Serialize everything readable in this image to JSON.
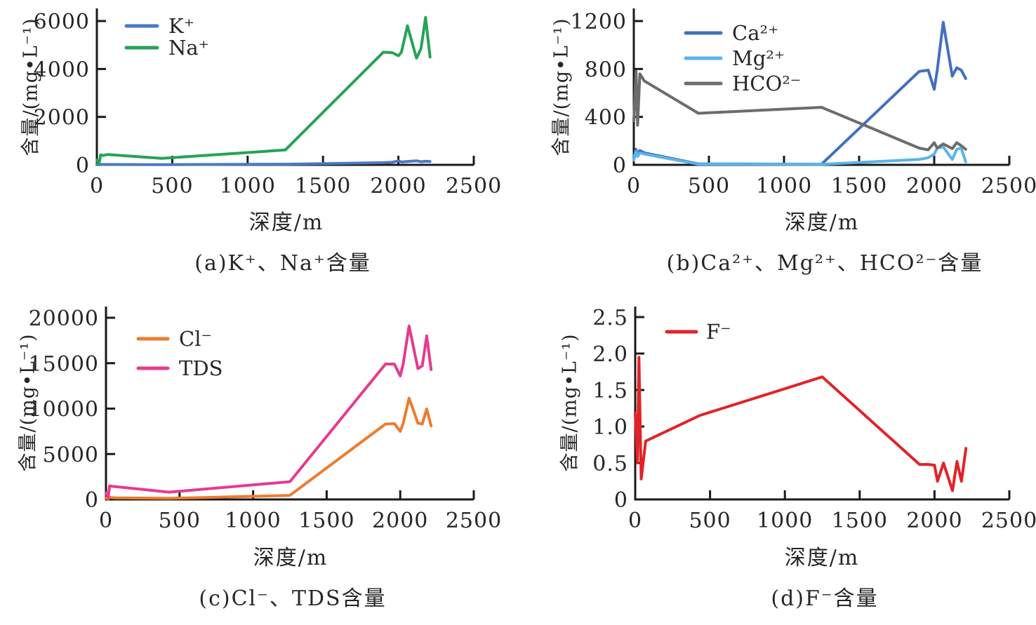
{
  "figure": {
    "background": "#ffffff",
    "text_color": "#262626",
    "axis_color": "#1a1a1a"
  },
  "chart_data": [
    {
      "id": "a",
      "type": "line",
      "caption": "(a)K⁺、Na⁺含量",
      "xlabel": "深度/m",
      "ylabel": "含量/(mg•L⁻¹)",
      "xlim": [
        0,
        2500
      ],
      "ylim": [
        0,
        6000
      ],
      "xticks": [
        0,
        500,
        1000,
        1500,
        2000,
        2500
      ],
      "xtick_labels": [
        "0",
        "500",
        "1000",
        "1500",
        "2000",
        "2500"
      ],
      "yticks": [
        0,
        2000,
        4000,
        6000
      ],
      "ytick_labels": [
        "0",
        "2000",
        "4000",
        "6000"
      ],
      "grid": false,
      "legend_position": "upper-left",
      "x": [
        0,
        15,
        25,
        40,
        70,
        430,
        1250,
        1900,
        1960,
        2000,
        2020,
        2060,
        2120,
        2150,
        2180,
        2210
      ],
      "series": [
        {
          "name": "K⁺",
          "color": "#4a79c5",
          "values": [
            20,
            10,
            15,
            15,
            15,
            10,
            25,
            90,
            110,
            160,
            120,
            140,
            170,
            130,
            150,
            140
          ]
        },
        {
          "name": "Na⁺",
          "color": "#26a355",
          "values": [
            200,
            50,
            420,
            390,
            430,
            270,
            620,
            4700,
            4680,
            4550,
            4700,
            5800,
            4450,
            4850,
            6150,
            4500
          ]
        }
      ]
    },
    {
      "id": "b",
      "type": "line",
      "caption": "(b)Ca²⁺、Mg²⁺、HCO²⁻含量",
      "xlabel": "深度/m",
      "ylabel": "含量/(mg•L⁻¹)",
      "xlim": [
        0,
        2500
      ],
      "ylim": [
        0,
        1200
      ],
      "xticks": [
        0,
        500,
        1000,
        1500,
        2000,
        2500
      ],
      "xtick_labels": [
        "0",
        "500",
        "1000",
        "1500",
        "2000",
        "2500"
      ],
      "yticks": [
        0,
        400,
        800,
        1200
      ],
      "ytick_labels": [
        "0",
        "400",
        "800",
        "1200"
      ],
      "grid": false,
      "legend_position": "upper-left",
      "x": [
        0,
        15,
        25,
        40,
        70,
        430,
        1250,
        1900,
        1960,
        2000,
        2020,
        2060,
        2120,
        2150,
        2180,
        2210
      ],
      "series": [
        {
          "name": "Ca²⁺",
          "color": "#4370bf",
          "values": [
            60,
            130,
            80,
            120,
            100,
            8,
            5,
            780,
            790,
            630,
            790,
            1190,
            740,
            810,
            790,
            720
          ]
        },
        {
          "name": "Mg²⁺",
          "color": "#59b5e8",
          "values": [
            40,
            110,
            70,
            100,
            90,
            6,
            4,
            45,
            60,
            90,
            140,
            150,
            45,
            130,
            140,
            25
          ]
        },
        {
          "name": "HCO²⁻",
          "color": "#6c6c6c",
          "values": [
            370,
            780,
            330,
            760,
            700,
            430,
            480,
            140,
            125,
            185,
            140,
            175,
            135,
            185,
            160,
            130
          ]
        }
      ]
    },
    {
      "id": "c",
      "type": "line",
      "caption": "(c)Cl⁻、TDS含量",
      "xlabel": "深度/m",
      "ylabel": "含量/(mg•L⁻¹)",
      "xlim": [
        0,
        2500
      ],
      "ylim": [
        0,
        20000
      ],
      "xticks": [
        0,
        500,
        1000,
        1500,
        2000,
        2500
      ],
      "xtick_labels": [
        "0",
        "500",
        "1000",
        "1500",
        "2000",
        "2500"
      ],
      "yticks": [
        0,
        5000,
        10000,
        15000,
        20000
      ],
      "ytick_labels": [
        "0",
        "5000",
        "10000",
        "15000",
        "20000"
      ],
      "grid": false,
      "legend_position": "upper-left",
      "x": [
        0,
        15,
        25,
        40,
        70,
        430,
        1250,
        1900,
        1960,
        2000,
        2020,
        2060,
        2120,
        2150,
        2180,
        2210
      ],
      "series": [
        {
          "name": "Cl⁻",
          "color": "#ed7b2f",
          "values": [
            150,
            80,
            250,
            200,
            180,
            120,
            450,
            8300,
            8350,
            7500,
            8350,
            11150,
            8400,
            8300,
            9950,
            8100
          ]
        },
        {
          "name": "TDS",
          "color": "#e73a8e",
          "values": [
            700,
            200,
            1500,
            1450,
            1400,
            800,
            1950,
            14900,
            14900,
            13600,
            14900,
            19100,
            14400,
            14700,
            18000,
            14300
          ]
        }
      ]
    },
    {
      "id": "d",
      "type": "line",
      "caption": "(d)F⁻含量",
      "xlabel": "深度/m",
      "ylabel": "含量/(mg•L⁻¹)",
      "xlim": [
        0,
        2500
      ],
      "ylim": [
        0,
        2.5
      ],
      "xticks": [
        0,
        500,
        1000,
        1500,
        2000,
        2500
      ],
      "xtick_labels": [
        "0",
        "500",
        "1000",
        "1500",
        "2000",
        "2500"
      ],
      "yticks": [
        0,
        0.5,
        1.0,
        1.5,
        2.0,
        2.5
      ],
      "ytick_labels": [
        "0",
        "0.5",
        "1.0",
        "1.5",
        "2.0",
        "2.5"
      ],
      "grid": false,
      "legend_position": "upper-left",
      "x": [
        0,
        15,
        25,
        40,
        70,
        430,
        1250,
        1900,
        1960,
        2000,
        2020,
        2060,
        2120,
        2150,
        2180,
        2210
      ],
      "series": [
        {
          "name": "F⁻",
          "color": "#e12329",
          "values": [
            1.18,
            0.5,
            1.95,
            0.28,
            0.8,
            1.15,
            1.68,
            0.48,
            0.48,
            0.47,
            0.25,
            0.5,
            0.12,
            0.52,
            0.25,
            0.7
          ]
        }
      ]
    }
  ]
}
